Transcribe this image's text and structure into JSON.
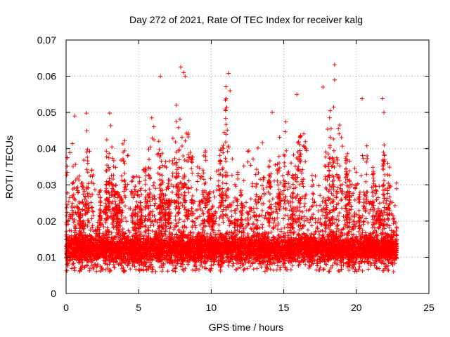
{
  "chart_data": {
    "type": "scatter",
    "title": "Day 272 of 2021, Rate Of TEC Index for receiver kalg",
    "xlabel": "GPS time / hours",
    "ylabel": "ROTI / TECUs",
    "xlim": [
      0,
      25
    ],
    "ylim": [
      0,
      0.07
    ],
    "x_ticks": [
      0,
      5,
      10,
      15,
      20,
      25
    ],
    "y_ticks": [
      0,
      0.01,
      0.02,
      0.03,
      0.04,
      0.05,
      0.06,
      0.07
    ],
    "x_tick_labels": [
      "0",
      "5",
      "10",
      "15",
      "20",
      "25"
    ],
    "y_tick_labels": [
      "0",
      "0.01",
      "0.02",
      "0.03",
      "0.04",
      "0.05",
      "0.06",
      "0.07"
    ],
    "grid": true,
    "marker": "+",
    "series_color": "#ff0000",
    "data_time_range_hours": [
      0,
      22.8
    ],
    "series": [
      {
        "name": "ROTI",
        "envelope_hours": [
          0,
          0.5,
          1,
          1.5,
          2,
          2.5,
          3,
          3.5,
          4,
          4.5,
          5,
          5.5,
          6,
          6.5,
          7,
          7.5,
          8,
          8.5,
          9,
          9.5,
          10,
          10.5,
          11,
          11.5,
          12,
          12.5,
          13,
          13.5,
          14,
          14.5,
          15,
          15.5,
          16,
          16.5,
          17,
          17.5,
          18,
          18.5,
          19,
          19.5,
          20,
          20.5,
          21,
          21.5,
          22,
          22.5,
          22.8
        ],
        "typical_max": [
          0.035,
          0.045,
          0.03,
          0.045,
          0.028,
          0.03,
          0.048,
          0.03,
          0.045,
          0.035,
          0.03,
          0.035,
          0.045,
          0.04,
          0.035,
          0.045,
          0.05,
          0.04,
          0.035,
          0.042,
          0.03,
          0.035,
          0.055,
          0.035,
          0.03,
          0.04,
          0.035,
          0.045,
          0.045,
          0.035,
          0.05,
          0.035,
          0.05,
          0.04,
          0.035,
          0.035,
          0.045,
          0.05,
          0.045,
          0.035,
          0.035,
          0.04,
          0.038,
          0.03,
          0.04,
          0.03,
          0.03
        ],
        "core_range": [
          0.006,
          0.022
        ],
        "highlights": [
          {
            "x": 7.9,
            "y": 0.0625
          },
          {
            "x": 8.1,
            "y": 0.061
          },
          {
            "x": 18.5,
            "y": 0.0632
          },
          {
            "x": 11.2,
            "y": 0.0608
          },
          {
            "x": 6.5,
            "y": 0.06
          },
          {
            "x": 8.2,
            "y": 0.06
          },
          {
            "x": 17.7,
            "y": 0.057
          },
          {
            "x": 18.5,
            "y": 0.059
          },
          {
            "x": 21.8,
            "y": 0.0538
          },
          {
            "x": 20.4,
            "y": 0.0538
          },
          {
            "x": 15.9,
            "y": 0.055
          },
          {
            "x": 11.3,
            "y": 0.056
          },
          {
            "x": 0.6,
            "y": 0.049
          },
          {
            "x": 1.4,
            "y": 0.0498
          },
          {
            "x": 3.0,
            "y": 0.0498
          },
          {
            "x": 5.9,
            "y": 0.0485
          },
          {
            "x": 7.6,
            "y": 0.052
          },
          {
            "x": 14.2,
            "y": 0.05
          },
          {
            "x": 21.9,
            "y": 0.05
          },
          {
            "x": 18.2,
            "y": 0.0505
          }
        ]
      }
    ]
  }
}
